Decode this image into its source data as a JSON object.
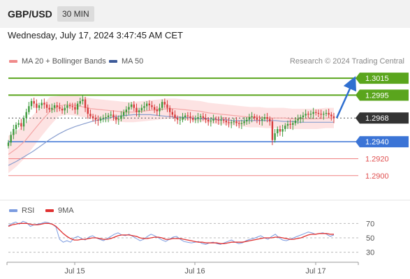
{
  "header": {
    "symbol": "GBP/USD",
    "timeframe": "30 MIN"
  },
  "date_line": "Wednesday, July 17, 2024 3:47:45 AM CET",
  "legend": {
    "ma20": "MA 20 + Bollinger Bands",
    "ma50": "MA 50",
    "credit": "Research © 2024 Trading Central"
  },
  "rsi_legend": {
    "rsi": "RSI",
    "ma": "9MA"
  },
  "colors": {
    "resistance": "#5aa51d",
    "support": "#3b74d6",
    "support_minor": "#f08080",
    "last": "#333333",
    "ma20": "#f4a6a6",
    "ma50": "#3d5a99",
    "rsi": "#7b9be0",
    "rsi_ma": "#e03030"
  },
  "chart_data": [
    {
      "type": "line",
      "title": "",
      "x_ticks": [
        "Jul 15",
        "Jul 16",
        "Jul 17"
      ],
      "ylim": [
        1.2885,
        1.3025
      ],
      "levels": [
        {
          "value": 1.3015,
          "label": "1.3015",
          "kind": "resistance"
        },
        {
          "value": 1.2995,
          "label": "1.2995",
          "kind": "resistance"
        },
        {
          "value": 1.2968,
          "label": "1.2968",
          "kind": "last"
        },
        {
          "value": 1.294,
          "label": "1.2940",
          "kind": "support"
        },
        {
          "value": 1.292,
          "label": "1.2920",
          "kind": "support_minor"
        },
        {
          "value": 1.29,
          "label": "1.2900",
          "kind": "support_minor"
        }
      ],
      "series": [
        {
          "name": "GBP/USD",
          "values": [
            1.2939,
            1.2948,
            1.2955,
            1.296,
            1.2962,
            1.2958,
            1.2968,
            1.2975,
            1.2982,
            1.2988,
            1.2985,
            1.298,
            1.2983,
            1.2986,
            1.2984,
            1.298,
            1.2978,
            1.298,
            1.2983,
            1.2981,
            1.2979,
            1.2977,
            1.298,
            1.2983,
            1.2982,
            1.2981,
            1.2978,
            1.2985,
            1.2988,
            1.299,
            1.298,
            1.2973,
            1.297,
            1.2968,
            1.2966,
            1.2965,
            1.2967,
            1.2968,
            1.2969,
            1.2971,
            1.2972,
            1.2969,
            1.2966,
            1.2967,
            1.2971,
            1.2975,
            1.2978,
            1.2981,
            1.2984,
            1.298,
            1.2975,
            1.2977,
            1.298,
            1.2982,
            1.2985,
            1.2983,
            1.2981,
            1.2978,
            1.2976,
            1.298,
            1.2987,
            1.2984,
            1.298,
            1.2975,
            1.2972,
            1.2968,
            1.2966,
            1.2966,
            1.2969,
            1.2971,
            1.297,
            1.2968,
            1.2966,
            1.2967,
            1.2969,
            1.297,
            1.2968,
            1.2966,
            1.2964,
            1.2965,
            1.2967,
            1.2966,
            1.2965,
            1.2966,
            1.2965,
            1.2963,
            1.2962,
            1.2963,
            1.2964,
            1.2962,
            1.2961,
            1.2962,
            1.2964,
            1.2966,
            1.2969,
            1.297,
            1.2968,
            1.2966,
            1.2965,
            1.2967,
            1.2969,
            1.2967,
            1.2964,
            1.2942,
            1.295,
            1.2955,
            1.2952,
            1.2955,
            1.2959,
            1.2961,
            1.296,
            1.2962,
            1.2965,
            1.2967,
            1.2969,
            1.2971,
            1.2973,
            1.2972,
            1.2973,
            1.2975,
            1.2974,
            1.2973,
            1.2972,
            1.2973,
            1.2974,
            1.2972,
            1.297,
            1.2968
          ]
        },
        {
          "name": "MA 20",
          "values": [
            1.2925,
            1.2932,
            1.2941,
            1.2953,
            1.2965,
            1.2976,
            1.2982,
            1.2984,
            1.2983,
            1.2981,
            1.2979,
            1.2978,
            1.2977,
            1.2976,
            1.2975,
            1.2975,
            1.2976,
            1.2977,
            1.2978,
            1.2979,
            1.2979,
            1.2978,
            1.2977,
            1.2976,
            1.2974,
            1.2973,
            1.2972,
            1.2971,
            1.297,
            1.2969,
            1.2969,
            1.2968,
            1.2968,
            1.2968,
            1.2967,
            1.2967,
            1.2967,
            1.2967,
            1.2968,
            1.2968
          ]
        },
        {
          "name": "MA 50",
          "values": [
            1.2912,
            1.2917,
            1.2923,
            1.2929,
            1.2936,
            1.2943,
            1.2949,
            1.2954,
            1.2958,
            1.2961,
            1.2964,
            1.2966,
            1.2968,
            1.297,
            1.2971,
            1.2972,
            1.2972,
            1.2972,
            1.2971,
            1.297,
            1.2969,
            1.2969,
            1.2968,
            1.2967,
            1.2967,
            1.2966,
            1.2966,
            1.2965,
            1.2965,
            1.2965,
            1.2965,
            1.2965,
            1.2965,
            1.2964,
            1.2964,
            1.2963,
            1.2963,
            1.2963,
            1.2963,
            1.2963
          ]
        }
      ],
      "forecast_to": 1.3015
    },
    {
      "type": "line",
      "title": "",
      "y_ticks": [
        70,
        50,
        30
      ],
      "ylim": [
        20,
        80
      ],
      "series": [
        {
          "name": "RSI",
          "values": [
            67,
            70,
            72,
            69,
            73,
            71,
            66,
            68,
            69,
            70,
            72,
            71,
            69,
            65,
            48,
            44,
            46,
            44,
            50,
            52,
            49,
            47,
            51,
            53,
            50,
            48,
            46,
            49,
            52,
            55,
            57,
            54,
            53,
            55,
            52,
            49,
            46,
            48,
            52,
            55,
            53,
            50,
            47,
            45,
            48,
            51,
            52,
            48,
            45,
            44,
            43,
            44,
            45,
            42,
            41,
            43,
            44,
            42,
            41,
            43,
            45,
            47,
            44,
            42,
            43,
            46,
            48,
            49,
            51,
            53,
            50,
            48,
            52,
            55,
            50,
            47,
            46,
            48,
            50,
            52,
            54,
            56,
            58,
            57,
            55,
            56,
            57,
            55,
            52,
            54
          ]
        },
        {
          "name": "9MA",
          "values": [
            66,
            68,
            69,
            70,
            70,
            70,
            69,
            68,
            68,
            69,
            70,
            70,
            69,
            66,
            61,
            56,
            52,
            49,
            47,
            47,
            48,
            48,
            49,
            50,
            50,
            49,
            48,
            48,
            49,
            51,
            53,
            54,
            54,
            54,
            53,
            52,
            50,
            49,
            49,
            50,
            51,
            51,
            50,
            48,
            48,
            49,
            49,
            49,
            48,
            47,
            46,
            45,
            44,
            44,
            43,
            43,
            43,
            43,
            42,
            42,
            43,
            44,
            44,
            44,
            44,
            45,
            46,
            47,
            48,
            49,
            50,
            50,
            50,
            51,
            51,
            50,
            49,
            48,
            48,
            49,
            50,
            52,
            54,
            55,
            55,
            56,
            56,
            56,
            55,
            55
          ]
        }
      ]
    }
  ]
}
